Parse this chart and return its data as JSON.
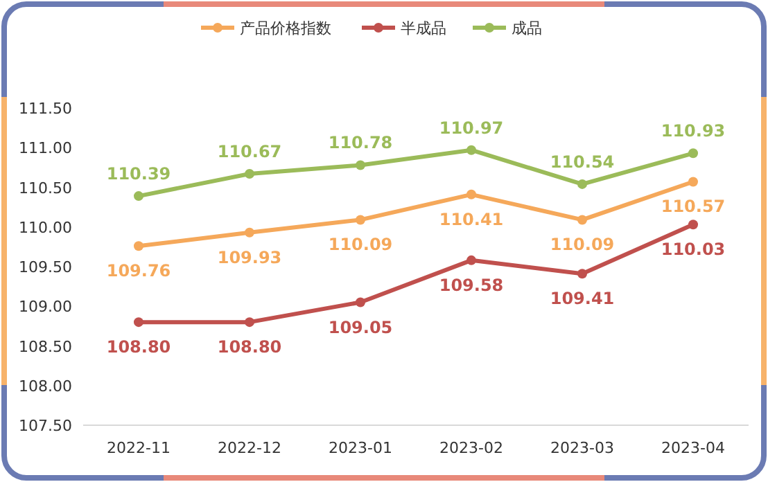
{
  "chart_data": {
    "type": "line",
    "categories": [
      "2022-11",
      "2022-12",
      "2023-01",
      "2023-02",
      "2023-03",
      "2023-04"
    ],
    "series": [
      {
        "name": "产品价格指数",
        "color": "#f5a85a",
        "values": [
          109.76,
          109.93,
          110.09,
          110.41,
          110.09,
          110.57
        ],
        "value_labels": [
          "109.76",
          "109.93",
          "110.09",
          "110.41",
          "110.09",
          "110.57"
        ]
      },
      {
        "name": "半成品",
        "color": "#c0504d",
        "values": [
          108.8,
          108.8,
          109.05,
          109.58,
          109.41,
          110.03
        ],
        "value_labels": [
          "108.80",
          "108.80",
          "109.05",
          "109.58",
          "109.41",
          "110.03"
        ]
      },
      {
        "name": "成品",
        "color": "#9bbb59",
        "values": [
          110.39,
          110.67,
          110.78,
          110.97,
          110.54,
          110.93
        ],
        "value_labels": [
          "110.39",
          "110.67",
          "110.78",
          "110.97",
          "110.54",
          "110.93"
        ]
      }
    ],
    "ylim": [
      107.5,
      111.5
    ],
    "yticks": [
      {
        "value": 107.5,
        "label": "107.50"
      },
      {
        "value": 108,
        "label": "108.00"
      },
      {
        "value": 108.5,
        "label": "108.50"
      },
      {
        "value": 109,
        "label": "109.00"
      },
      {
        "value": 109.5,
        "label": "109.50"
      },
      {
        "value": 110,
        "label": "110.00"
      },
      {
        "value": 110.5,
        "label": "110.50"
      },
      {
        "value": 111,
        "label": "111.00"
      },
      {
        "value": 111.5,
        "label": "111.50"
      }
    ],
    "legend": "top",
    "marker": "circle",
    "line_style": "solid",
    "grid": false
  }
}
